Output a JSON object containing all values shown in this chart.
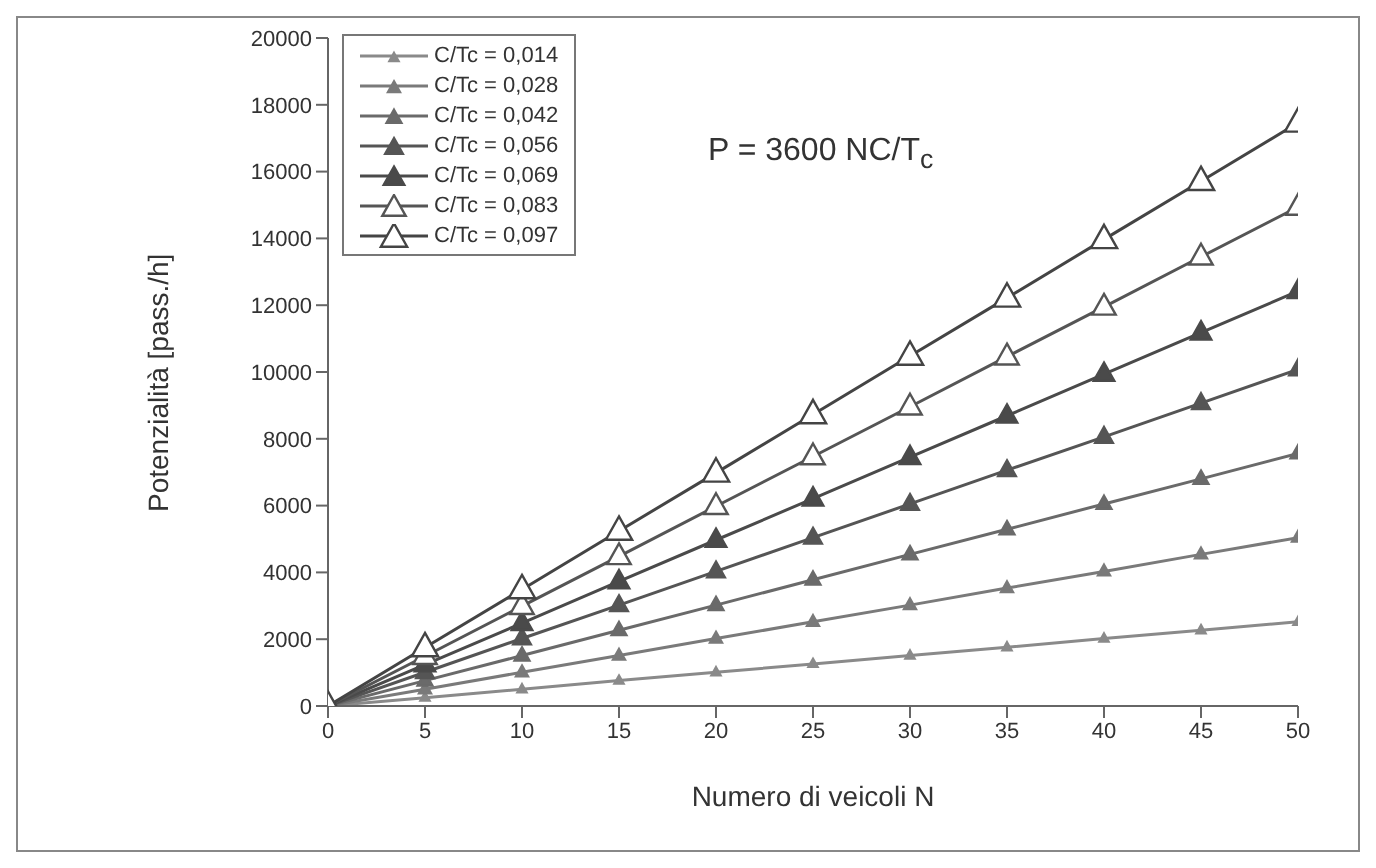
{
  "chart_data": {
    "type": "line",
    "xlabel": "Numero di veicoli N",
    "ylabel": "Potenzialità [pass./h]",
    "annotations": [
      "P = 3600 NC/T$_{c}$"
    ],
    "x": [
      0,
      5,
      10,
      15,
      20,
      25,
      30,
      35,
      40,
      45,
      50
    ],
    "series": [
      {
        "name": "C/Tc = 0,014",
        "color": "#8a8a8a",
        "values": [
          0,
          250,
          500,
          760,
          1010,
          1260,
          1510,
          1760,
          2020,
          2270,
          2520
        ]
      },
      {
        "name": "C/Tc = 0,028",
        "color": "#7a7a7a",
        "values": [
          0,
          500,
          1010,
          1510,
          2020,
          2520,
          3020,
          3530,
          4030,
          4540,
          5040
        ]
      },
      {
        "name": "C/Tc = 0,042",
        "color": "#6a6a6a",
        "values": [
          0,
          760,
          1510,
          2270,
          3020,
          3780,
          4540,
          5290,
          6050,
          6800,
          7560
        ]
      },
      {
        "name": "C/Tc = 0,056",
        "color": "#555555",
        "values": [
          0,
          1010,
          2020,
          3020,
          4030,
          5040,
          6050,
          7060,
          8060,
          9070,
          10080
        ]
      },
      {
        "name": "C/Tc = 0,069",
        "color": "#4a4a4a",
        "values": [
          0,
          1240,
          2480,
          3730,
          4970,
          6210,
          7450,
          8690,
          9940,
          11180,
          12420
        ]
      },
      {
        "name": "C/Tc = 0,083",
        "color": "#555555",
        "values": [
          0,
          1490,
          2990,
          4480,
          5980,
          7470,
          8960,
          10460,
          11950,
          13450,
          14940
        ]
      },
      {
        "name": "C/Tc = 0,097",
        "color": "#444444",
        "values": [
          0,
          1750,
          3490,
          5240,
          6980,
          8730,
          10480,
          12220,
          13970,
          15710,
          17460
        ]
      }
    ],
    "xlim": [
      0,
      50
    ],
    "xticks": [
      0,
      5,
      10,
      15,
      20,
      25,
      30,
      35,
      40,
      45,
      50
    ],
    "ylim": [
      0,
      20000
    ],
    "yticks": [
      0,
      2000,
      4000,
      6000,
      8000,
      10000,
      12000,
      14000,
      16000,
      18000,
      20000
    ],
    "grid": false,
    "legend": "top left",
    "marker": "triangle",
    "line_style": "solid"
  }
}
